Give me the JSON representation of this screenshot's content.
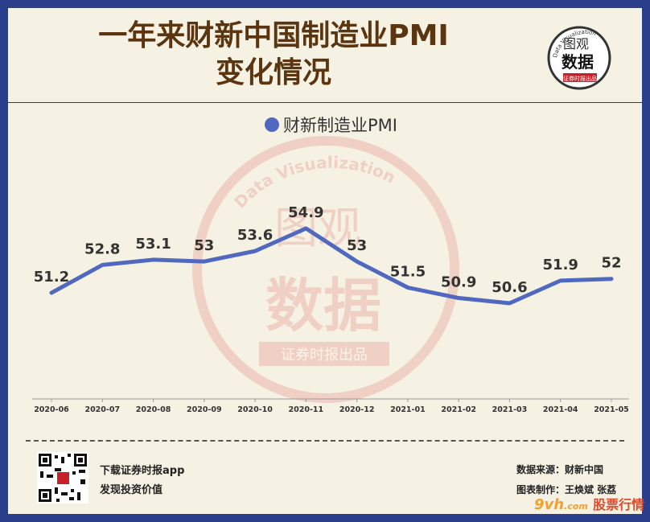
{
  "header": {
    "title_line1": "一年来财新中国制造业PMI",
    "title_line2": "变化情况",
    "logo_line1": "图观",
    "logo_line2": "数据",
    "logo_arc": "Data Visualization",
    "logo_tag": "证券时报出品"
  },
  "watermark": {
    "arc": "Data Visualization",
    "line1": "图观",
    "line2": "数据",
    "tag": "证券时报出品"
  },
  "chart_data": {
    "type": "line",
    "title": "",
    "xlabel": "",
    "ylabel": "",
    "categories": [
      "2020-06",
      "2020-07",
      "2020-08",
      "2020-09",
      "2020-10",
      "2020-11",
      "2020-12",
      "2021-01",
      "2021-02",
      "2021-03",
      "2021-04",
      "2021-05"
    ],
    "series": [
      {
        "name": "财新制造业PMI",
        "values": [
          51.2,
          52.8,
          53.1,
          53,
          53.6,
          54.9,
          53,
          51.5,
          50.9,
          50.6,
          51.9,
          52
        ],
        "color": "#5068c0"
      }
    ],
    "legend": "top-center",
    "grid": false,
    "data_labels": true
  },
  "footer": {
    "app_line1": "下载证券时报app",
    "app_line2": "发现投资价值",
    "source": "数据来源：财新中国",
    "author": "图表制作：王焕斌 张荔"
  },
  "site_mark": {
    "brand": "9vh",
    "domain": ".com",
    "name": "股票行情"
  }
}
